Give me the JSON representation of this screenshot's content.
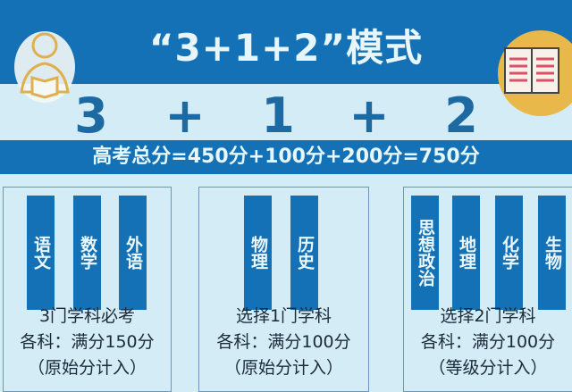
{
  "title": "“3+1+2”模式",
  "formula": {
    "parts": [
      "3",
      "+",
      "1",
      "+",
      "2"
    ]
  },
  "total": "高考总分=450分+100分+200分=750分",
  "groups": [
    {
      "subjects": [
        "语文",
        "数学",
        "外语"
      ],
      "lines": [
        "3门学科必考",
        "各科：满分150分",
        "（原始分计入）"
      ]
    },
    {
      "subjects": [
        "物理",
        "历史"
      ],
      "lines": [
        "选择1门学科",
        "各科：满分100分",
        "（原始分计入）"
      ]
    },
    {
      "subjects": [
        "思想政治",
        "地理",
        "化学",
        "生物"
      ],
      "lines": [
        "选择2门学科",
        "各科：满分100分",
        "（等级分计入）"
      ]
    }
  ],
  "colors": {
    "primary": "#1571b5",
    "background": "#d4ecf5",
    "accent": "#e8b84a"
  },
  "icons": [
    "student-reading-icon",
    "open-book-icon"
  ]
}
